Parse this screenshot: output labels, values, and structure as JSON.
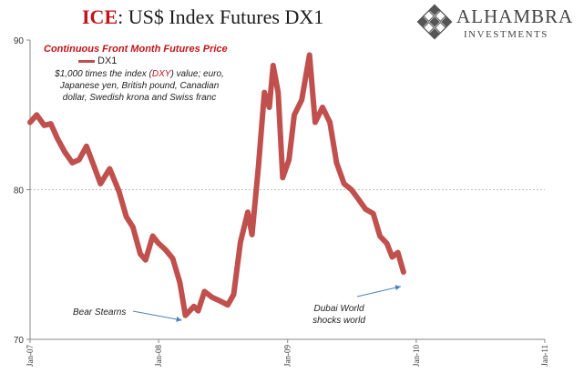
{
  "header": {
    "title_brand": "ICE",
    "title_rest": ": US$ Index Futures DX1",
    "logo_name": "ALHAMBRA",
    "logo_sub": "INVESTMENTS"
  },
  "chart_data": {
    "type": "line",
    "subtitle": "Continuous  Front Month Futures Price",
    "note_prefix": "$1,000 times the index (",
    "note_highlight": "DXY",
    "note_suffix": ") value; euro, Japanese yen, British pound, Canadian dollar, Swedish krona and Swiss franc",
    "ylim": [
      70,
      90
    ],
    "yticks": [
      70,
      80,
      90
    ],
    "xlim": [
      "2007-01-01",
      "2011-01-01"
    ],
    "xticks": [
      {
        "date": "2007-01-01",
        "label": "Jan-07"
      },
      {
        "date": "2008-01-01",
        "label": "Jan-08"
      },
      {
        "date": "2009-01-01",
        "label": "Jan-09"
      },
      {
        "date": "2010-01-01",
        "label": "Jan-10"
      },
      {
        "date": "2011-01-01",
        "label": "Jan-11"
      }
    ],
    "gridline_y": 80,
    "legend": {
      "position": "top-left",
      "label": "DX1",
      "color": "#c0504d"
    },
    "series": [
      {
        "name": "DX1",
        "color": "#c0504d",
        "points": [
          [
            "2007-01-01",
            84.5
          ],
          [
            "2007-01-20",
            85.0
          ],
          [
            "2007-02-10",
            84.3
          ],
          [
            "2007-03-01",
            84.4
          ],
          [
            "2007-03-20",
            83.4
          ],
          [
            "2007-04-10",
            82.5
          ],
          [
            "2007-05-01",
            81.8
          ],
          [
            "2007-05-20",
            82.0
          ],
          [
            "2007-06-10",
            82.9
          ],
          [
            "2007-07-01",
            81.6
          ],
          [
            "2007-07-20",
            80.4
          ],
          [
            "2007-08-15",
            81.4
          ],
          [
            "2007-09-10",
            79.9
          ],
          [
            "2007-10-01",
            78.2
          ],
          [
            "2007-10-20",
            77.5
          ],
          [
            "2007-11-10",
            75.7
          ],
          [
            "2007-11-25",
            75.3
          ],
          [
            "2007-12-15",
            76.9
          ],
          [
            "2008-01-01",
            76.4
          ],
          [
            "2008-01-20",
            76.0
          ],
          [
            "2008-02-10",
            75.4
          ],
          [
            "2008-03-01",
            73.8
          ],
          [
            "2008-03-17",
            71.6
          ],
          [
            "2008-04-10",
            72.2
          ],
          [
            "2008-04-22",
            71.9
          ],
          [
            "2008-05-10",
            73.2
          ],
          [
            "2008-06-01",
            72.8
          ],
          [
            "2008-06-20",
            72.6
          ],
          [
            "2008-07-15",
            72.3
          ],
          [
            "2008-08-01",
            73.0
          ],
          [
            "2008-08-20",
            76.5
          ],
          [
            "2008-09-10",
            78.5
          ],
          [
            "2008-09-22",
            77.0
          ],
          [
            "2008-10-10",
            81.5
          ],
          [
            "2008-10-27",
            86.5
          ],
          [
            "2008-11-10",
            85.5
          ],
          [
            "2008-11-21",
            88.3
          ],
          [
            "2008-12-05",
            86.5
          ],
          [
            "2008-12-18",
            80.8
          ],
          [
            "2009-01-05",
            82.0
          ],
          [
            "2009-01-20",
            85.0
          ],
          [
            "2009-02-10",
            86.0
          ],
          [
            "2009-03-04",
            89.0
          ],
          [
            "2009-03-20",
            84.5
          ],
          [
            "2009-04-10",
            85.5
          ],
          [
            "2009-05-01",
            84.5
          ],
          [
            "2009-05-20",
            81.8
          ],
          [
            "2009-06-10",
            80.4
          ],
          [
            "2009-07-01",
            80.0
          ],
          [
            "2009-07-20",
            79.4
          ],
          [
            "2009-08-10",
            78.7
          ],
          [
            "2009-09-01",
            78.4
          ],
          [
            "2009-09-20",
            76.9
          ],
          [
            "2009-10-10",
            76.4
          ],
          [
            "2009-10-25",
            75.5
          ],
          [
            "2009-11-10",
            75.8
          ],
          [
            "2009-11-26",
            74.5
          ]
        ]
      }
    ],
    "annotations": [
      {
        "text": "Bear Stearns",
        "target": [
          "2008-03-17",
          71.4
        ]
      },
      {
        "text": "Dubai World shocks world",
        "target": [
          "2009-11-26",
          74.2
        ]
      }
    ]
  }
}
